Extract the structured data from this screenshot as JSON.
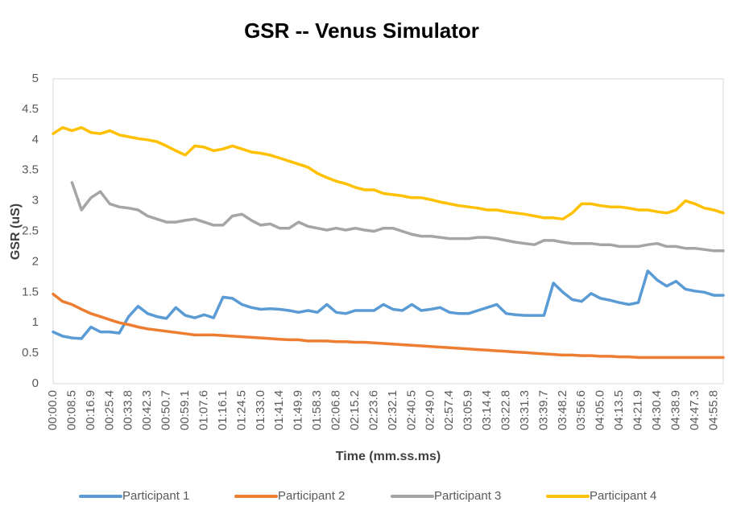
{
  "chart_data": {
    "type": "line",
    "title": "GSR -- Venus Simulator",
    "x_label": "Time (mm.ss.ms)",
    "y_label": "GSR (uS)",
    "categories": [
      "00:00.0",
      null,
      "00:08.5",
      null,
      "00:16.9",
      null,
      "00:25.4",
      null,
      "00:33.8",
      null,
      "00:42.3",
      null,
      "00:50.7",
      null,
      "00:59.1",
      null,
      "01:07.6",
      null,
      "01:16.1",
      null,
      "01:24.5",
      null,
      "01:33.0",
      null,
      "01:41.4",
      null,
      "01:49.9",
      null,
      "01:58.3",
      null,
      "02:06.8",
      null,
      "02:15.2",
      null,
      "02:23.6",
      null,
      "02:32.1",
      null,
      "02:40.5",
      null,
      "02:49.0",
      null,
      "02:57.4",
      null,
      "03:05.9",
      null,
      "03:14.4",
      null,
      "03:22.8",
      null,
      "03:31.3",
      null,
      "03:39.7",
      null,
      "03:48.2",
      null,
      "03:56.6",
      null,
      "04:05.0",
      null,
      "04:13.5",
      null,
      "04:21.9",
      null,
      "04:30.4",
      null,
      "04:38.9",
      null,
      "04:47.3",
      null,
      "04:55.8",
      null
    ],
    "series": [
      {
        "name": "Participant 1",
        "color": "#5b9bd5",
        "values": [
          0.85,
          0.78,
          0.75,
          0.74,
          0.93,
          0.85,
          0.85,
          0.83,
          1.1,
          1.27,
          1.15,
          1.1,
          1.07,
          1.25,
          1.12,
          1.08,
          1.13,
          1.08,
          1.42,
          1.4,
          1.3,
          1.25,
          1.22,
          1.23,
          1.22,
          1.2,
          1.17,
          1.2,
          1.17,
          1.3,
          1.17,
          1.15,
          1.2,
          1.2,
          1.2,
          1.3,
          1.22,
          1.2,
          1.3,
          1.2,
          1.22,
          1.25,
          1.17,
          1.15,
          1.15,
          1.2,
          1.25,
          1.3,
          1.15,
          1.13,
          1.12,
          1.12,
          1.12,
          1.65,
          1.5,
          1.38,
          1.35,
          1.48,
          1.4,
          1.37,
          1.33,
          1.3,
          1.33,
          1.85,
          1.7,
          1.6,
          1.68,
          1.55,
          1.52,
          1.5,
          1.45,
          1.45
        ]
      },
      {
        "name": "Participant 2",
        "color": "#ed7d31",
        "values": [
          1.47,
          1.35,
          1.3,
          1.22,
          1.15,
          1.1,
          1.05,
          1.0,
          0.97,
          0.93,
          0.9,
          0.88,
          0.86,
          0.84,
          0.82,
          0.8,
          0.8,
          0.8,
          0.79,
          0.78,
          0.77,
          0.76,
          0.75,
          0.74,
          0.73,
          0.72,
          0.72,
          0.7,
          0.7,
          0.7,
          0.69,
          0.69,
          0.68,
          0.68,
          0.67,
          0.66,
          0.65,
          0.64,
          0.63,
          0.62,
          0.61,
          0.6,
          0.59,
          0.58,
          0.57,
          0.56,
          0.55,
          0.54,
          0.53,
          0.52,
          0.51,
          0.5,
          0.49,
          0.48,
          0.47,
          0.47,
          0.46,
          0.46,
          0.45,
          0.45,
          0.44,
          0.44,
          0.43,
          0.43,
          0.43,
          0.43,
          0.43,
          0.43,
          0.43,
          0.43,
          0.43,
          0.43
        ]
      },
      {
        "name": "Participant 3",
        "color": "#a5a5a5",
        "values": [
          null,
          null,
          3.3,
          2.85,
          3.05,
          3.15,
          2.95,
          2.9,
          2.88,
          2.85,
          2.75,
          2.7,
          2.65,
          2.65,
          2.68,
          2.7,
          2.65,
          2.6,
          2.6,
          2.75,
          2.78,
          2.68,
          2.6,
          2.62,
          2.55,
          2.55,
          2.65,
          2.58,
          2.55,
          2.52,
          2.55,
          2.52,
          2.55,
          2.52,
          2.5,
          2.55,
          2.55,
          2.5,
          2.45,
          2.42,
          2.42,
          2.4,
          2.38,
          2.38,
          2.38,
          2.4,
          2.4,
          2.38,
          2.35,
          2.32,
          2.3,
          2.28,
          2.35,
          2.35,
          2.32,
          2.3,
          2.3,
          2.3,
          2.28,
          2.28,
          2.25,
          2.25,
          2.25,
          2.28,
          2.3,
          2.25,
          2.25,
          2.22,
          2.22,
          2.2,
          2.18,
          2.18
        ]
      },
      {
        "name": "Participant 4",
        "color": "#ffc000",
        "values": [
          4.1,
          4.2,
          4.15,
          4.2,
          4.12,
          4.1,
          4.15,
          4.08,
          4.05,
          4.02,
          4.0,
          3.97,
          3.9,
          3.82,
          3.75,
          3.9,
          3.88,
          3.82,
          3.85,
          3.9,
          3.85,
          3.8,
          3.78,
          3.75,
          3.7,
          3.65,
          3.6,
          3.55,
          3.45,
          3.38,
          3.32,
          3.28,
          3.22,
          3.18,
          3.18,
          3.12,
          3.1,
          3.08,
          3.05,
          3.05,
          3.02,
          2.98,
          2.95,
          2.92,
          2.9,
          2.88,
          2.85,
          2.85,
          2.82,
          2.8,
          2.78,
          2.75,
          2.72,
          2.72,
          2.7,
          2.8,
          2.95,
          2.95,
          2.92,
          2.9,
          2.9,
          2.88,
          2.85,
          2.85,
          2.82,
          2.8,
          2.85,
          3.0,
          2.95,
          2.88,
          2.85,
          2.8
        ]
      }
    ],
    "ylim": [
      0,
      5
    ],
    "yticks": [
      0,
      0.5,
      1,
      1.5,
      2,
      2.5,
      3,
      3.5,
      4,
      4.5,
      5
    ],
    "grid": false,
    "legend": "bottom"
  }
}
